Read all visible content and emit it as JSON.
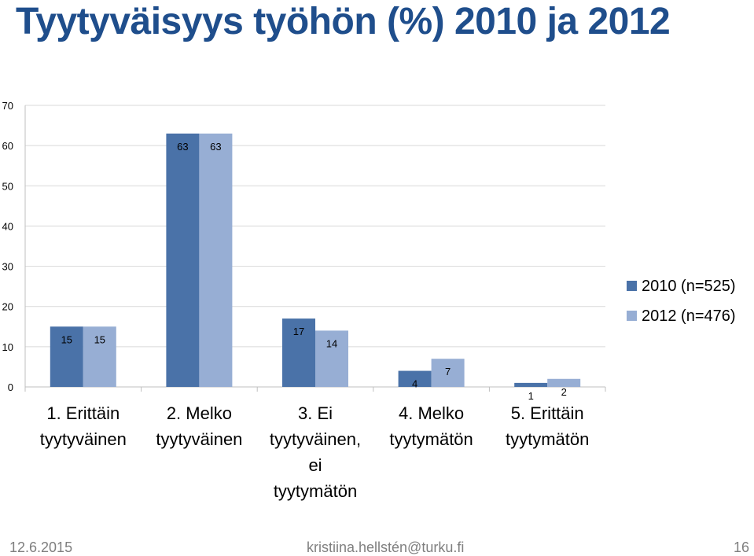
{
  "slide": {
    "title": "Tyytyväisyys työhön (%) 2010 ja 2012",
    "footer_date": "12.6.2015",
    "footer_email": "kristiina.hellstén@turku.fi",
    "page_number": "16"
  },
  "chart_data": {
    "type": "bar",
    "title": "",
    "categories": [
      [
        "1. Erittäin",
        "tyytyväinen"
      ],
      [
        "2. Melko",
        "tyytyväinen"
      ],
      [
        "3. Ei",
        "tyytyväinen,",
        "ei",
        "tyytymätön"
      ],
      [
        "4. Melko",
        "tyytymätön"
      ],
      [
        "5. Erittäin",
        "tyytymätön"
      ]
    ],
    "series": [
      {
        "name": "2010 (n=525)",
        "values": [
          15,
          63,
          17,
          4,
          1
        ],
        "color": "#4a72a8"
      },
      {
        "name": "2012 (n=476)",
        "values": [
          15,
          63,
          14,
          7,
          2
        ],
        "color": "#97aed4"
      }
    ],
    "ylim": [
      0,
      70
    ],
    "yticks": [
      0,
      10,
      20,
      30,
      40,
      50,
      60,
      70
    ],
    "grid": true,
    "legend": "right",
    "xlabel": "",
    "ylabel": ""
  }
}
